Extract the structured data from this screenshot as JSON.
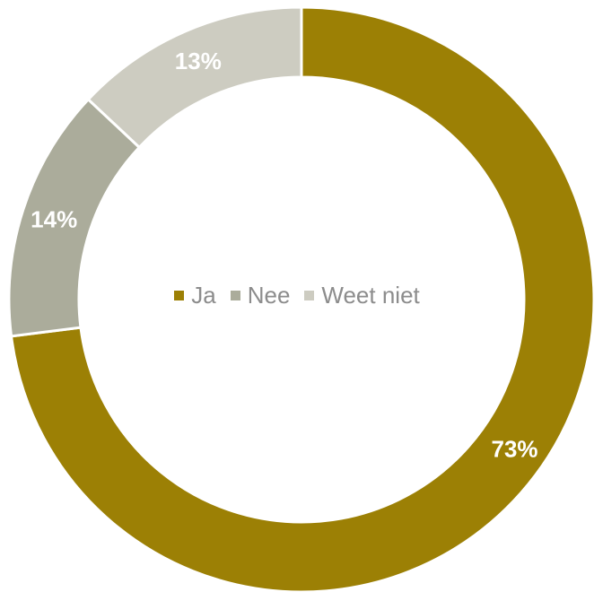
{
  "chart_data": {
    "type": "pie",
    "donut": true,
    "categories": [
      "Ja",
      "Nee",
      "Weet niet"
    ],
    "values": [
      73,
      14,
      13
    ],
    "labels": [
      "73%",
      "14%",
      "13%"
    ],
    "colors": [
      "#9c8005",
      "#abac9b",
      "#cdccc1"
    ],
    "legend_position": "center",
    "title": "",
    "xlabel": "",
    "ylabel": ""
  },
  "legend": {
    "items": [
      {
        "label": "Ja",
        "color": "#9c8005"
      },
      {
        "label": "Nee",
        "color": "#abac9b"
      },
      {
        "label": "Weet niet",
        "color": "#cdccc1"
      }
    ]
  }
}
